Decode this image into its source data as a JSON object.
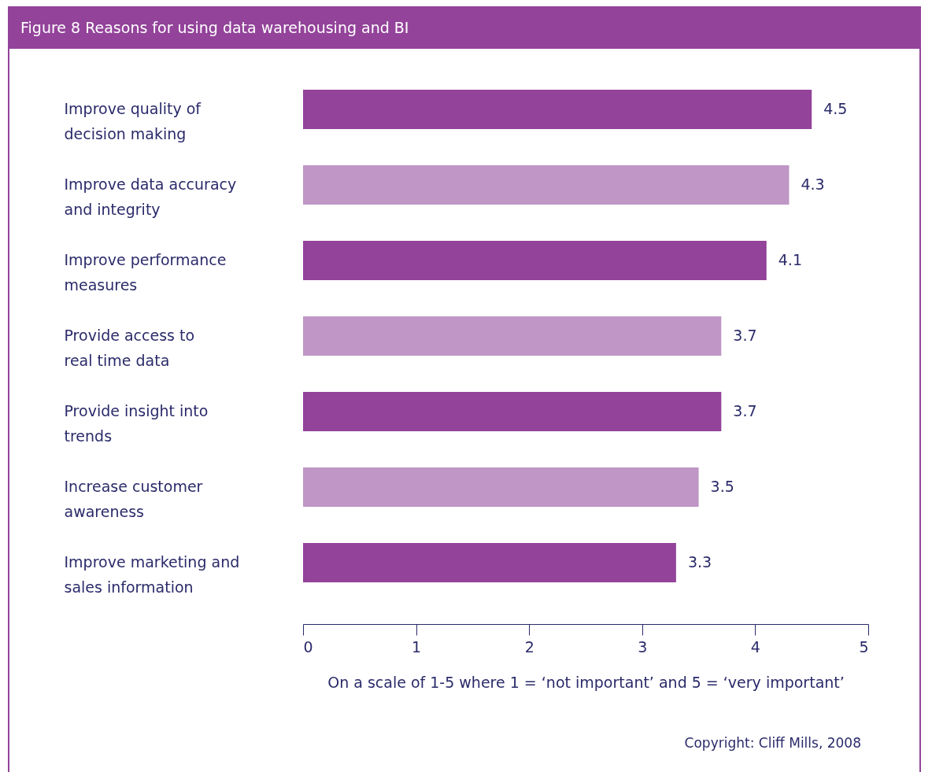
{
  "chart_data": {
    "type": "bar",
    "orientation": "horizontal",
    "title": "Figure 8 Reasons for using data warehousing and BI",
    "categories": [
      "Improve quality of decision making",
      "Improve data accuracy and integrity",
      "Improve performance measures",
      "Provide access to real time data",
      "Provide insight into trends",
      "Increase customer awareness",
      "Improve marketing and sales information"
    ],
    "values": [
      4.5,
      4.3,
      4.1,
      3.7,
      3.7,
      3.5,
      3.3
    ],
    "colors": [
      "#93439a",
      "#bf96c6",
      "#93439a",
      "#bf96c6",
      "#93439a",
      "#bf96c6",
      "#93439a"
    ],
    "xlim": [
      0,
      5
    ],
    "xticks": [
      0,
      1,
      2,
      3,
      4,
      5
    ],
    "xlabel": "On a scale of 1-5 where 1 = ‘not important’ and 5 = ‘very important’",
    "data_labels": true,
    "grid": false,
    "legend": false,
    "annotations": [
      "Copyright: Cliff Mills, 2008"
    ]
  }
}
